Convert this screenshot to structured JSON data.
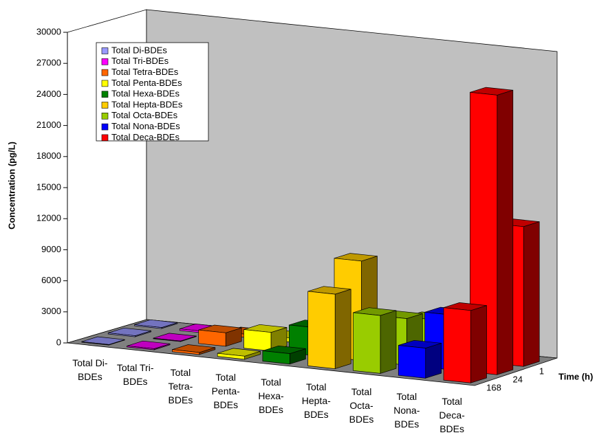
{
  "chart_data": {
    "type": "bar3d",
    "categories": [
      "Total Di-BDEs",
      "Total Tri-BDEs",
      "Total Tetra-BDEs",
      "Total Penta-BDEs",
      "Total Hexa-BDEs",
      "Total Hepta-BDEs",
      "Total Octa-BDEs",
      "Total Nona-BDEs",
      "Total Deca-BDEs"
    ],
    "colors": [
      "#9999ff",
      "#ff00ff",
      "#ff6600",
      "#ffff00",
      "#008000",
      "#ffcc00",
      "#99cc00",
      "#0000ff",
      "#ff0000"
    ],
    "series": [
      {
        "name": "168",
        "values": [
          50,
          100,
          200,
          300,
          1000,
          7200,
          5600,
          2900,
          7000
        ]
      },
      {
        "name": "24",
        "values": [
          100,
          50,
          1300,
          1800,
          2700,
          9600,
          4500,
          5300,
          27000
        ]
      },
      {
        "name": "1",
        "values": [
          100,
          150,
          300,
          400,
          600,
          500,
          3600,
          300,
          13500
        ]
      }
    ],
    "ylabel": "Concentration (pg/L)",
    "zlabel": "Time (h)",
    "ylim": [
      0,
      30000
    ],
    "yticks": [
      0,
      3000,
      6000,
      9000,
      12000,
      15000,
      18000,
      21000,
      24000,
      27000,
      30000
    ],
    "grid": false,
    "legend": "upper-left"
  }
}
